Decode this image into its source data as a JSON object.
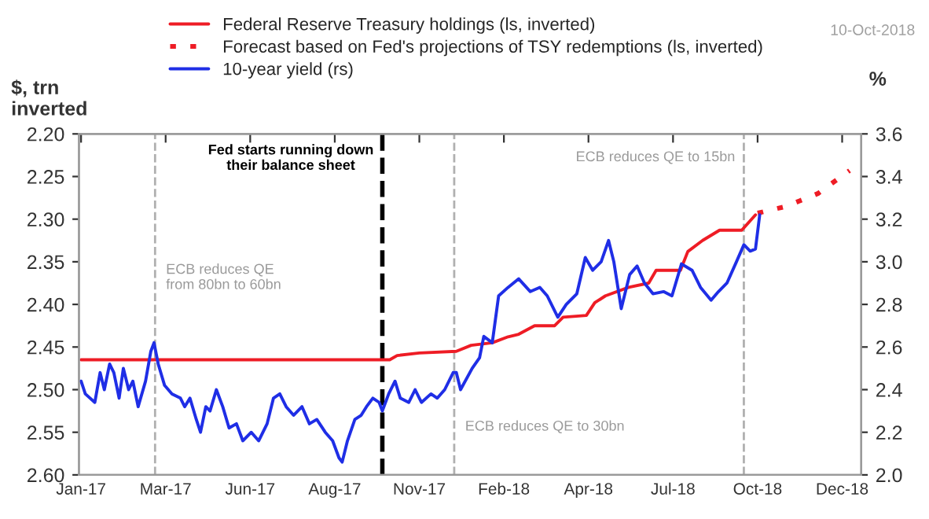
{
  "chart_data": {
    "type": "line",
    "ylabel": "$, trn\ninverted",
    "y2label": "%",
    "xlim": [
      "2016-12-30",
      "2019-01-09"
    ],
    "xticks": [
      {
        "value": "2017-01-01",
        "label": "Jan-17"
      },
      {
        "value": "2017-03-22",
        "label": "Mar-17"
      },
      {
        "value": "2017-06-10",
        "label": "Jun-17"
      },
      {
        "value": "2017-08-29",
        "label": "Aug-17"
      },
      {
        "value": "2017-11-17",
        "label": "Nov-17"
      },
      {
        "value": "2018-02-05",
        "label": "Feb-18"
      },
      {
        "value": "2018-04-26",
        "label": "Apr-18"
      },
      {
        "value": "2018-07-15",
        "label": "Jul-18"
      },
      {
        "value": "2018-10-03",
        "label": "Oct-18"
      },
      {
        "value": "2018-12-22",
        "label": "Dec-18"
      }
    ],
    "ylim": [
      2.6,
      2.2
    ],
    "yticks": [
      {
        "value": 2.2,
        "label": "2.20"
      },
      {
        "value": 2.25,
        "label": "2.25"
      },
      {
        "value": 2.3,
        "label": "2.30"
      },
      {
        "value": 2.35,
        "label": "2.35"
      },
      {
        "value": 2.4,
        "label": "2.40"
      },
      {
        "value": 2.45,
        "label": "2.45"
      },
      {
        "value": 2.5,
        "label": "2.50"
      },
      {
        "value": 2.55,
        "label": "2.55"
      },
      {
        "value": 2.6,
        "label": "2.60"
      }
    ],
    "y2lim": [
      2.0,
      3.6
    ],
    "y2ticks": [
      {
        "value": 2.0,
        "label": "2.0"
      },
      {
        "value": 2.2,
        "label": "2.2"
      },
      {
        "value": 2.4,
        "label": "2.4"
      },
      {
        "value": 2.6,
        "label": "2.6"
      },
      {
        "value": 2.8,
        "label": "2.8"
      },
      {
        "value": 3.0,
        "label": "3.0"
      },
      {
        "value": 3.2,
        "label": "3.2"
      },
      {
        "value": 3.4,
        "label": "3.4"
      },
      {
        "value": 3.6,
        "label": "3.6"
      }
    ],
    "grid": false,
    "legend": "top",
    "marker": "none",
    "series": [
      {
        "name": "Federal Reserve Treasury holdings (ls, inverted)",
        "color": "#ee1c25",
        "line_style": "solid",
        "x": [
          "2017-01-01",
          "2017-10-20",
          "2017-10-27",
          "2017-11-17",
          "2017-12-22",
          "2018-01-05",
          "2018-01-25",
          "2018-02-09",
          "2018-02-19",
          "2018-03-06",
          "2018-03-25",
          "2018-04-02",
          "2018-04-24",
          "2018-05-02",
          "2018-05-12",
          "2018-06-03",
          "2018-06-22",
          "2018-06-29",
          "2018-07-22",
          "2018-07-29",
          "2018-08-12",
          "2018-08-28",
          "2018-09-18",
          "2018-10-01"
        ],
        "values": [
          2.465,
          2.465,
          2.46,
          2.457,
          2.455,
          2.448,
          2.445,
          2.438,
          2.435,
          2.425,
          2.425,
          2.415,
          2.413,
          2.398,
          2.39,
          2.38,
          2.375,
          2.36,
          2.36,
          2.338,
          2.325,
          2.313,
          2.313,
          2.295
        ]
      },
      {
        "name": "Forecast based on Fed's projections of TSY redemptions (ls, inverted)",
        "color": "#ee1c25",
        "line_style": "dotted",
        "x": [
          "2018-10-03",
          "2018-10-30",
          "2018-11-29",
          "2018-12-29"
        ],
        "values": [
          2.293,
          2.285,
          2.27,
          2.243
        ]
      },
      {
        "name": "10-year yield (rs)",
        "color": "#1f2ee6",
        "line_style": "solid",
        "axis": "y2",
        "x": [
          "2017-01-01",
          "2017-01-05",
          "2017-01-14",
          "2017-01-19",
          "2017-01-23",
          "2017-01-28",
          "2017-02-01",
          "2017-02-06",
          "2017-02-10",
          "2017-02-15",
          "2017-02-19",
          "2017-02-24",
          "2017-03-03",
          "2017-03-08",
          "2017-03-11",
          "2017-03-15",
          "2017-03-21",
          "2017-03-28",
          "2017-04-05",
          "2017-04-09",
          "2017-04-14",
          "2017-04-20",
          "2017-04-24",
          "2017-04-29",
          "2017-05-03",
          "2017-05-09",
          "2017-05-15",
          "2017-05-21",
          "2017-05-28",
          "2017-06-03",
          "2017-06-11",
          "2017-06-18",
          "2017-06-26",
          "2017-07-02",
          "2017-07-08",
          "2017-07-14",
          "2017-07-21",
          "2017-07-29",
          "2017-08-05",
          "2017-08-12",
          "2017-08-20",
          "2017-08-27",
          "2017-09-02",
          "2017-09-05",
          "2017-09-10",
          "2017-09-17",
          "2017-09-23",
          "2017-09-28",
          "2017-10-04",
          "2017-10-10",
          "2017-10-13",
          "2017-10-19",
          "2017-10-25",
          "2017-10-30",
          "2017-11-07",
          "2017-11-13",
          "2017-11-19",
          "2017-11-28",
          "2017-12-04",
          "2017-12-11",
          "2017-12-19",
          "2017-12-22",
          "2017-12-26",
          "2018-01-06",
          "2018-01-13",
          "2018-01-17",
          "2018-01-25",
          "2018-01-31",
          "2018-02-09",
          "2018-02-19",
          "2018-03-02",
          "2018-03-11",
          "2018-03-18",
          "2018-03-28",
          "2018-04-05",
          "2018-04-15",
          "2018-04-23",
          "2018-04-30",
          "2018-05-08",
          "2018-05-15",
          "2018-05-20",
          "2018-05-27",
          "2018-06-04",
          "2018-06-11",
          "2018-06-18",
          "2018-06-26",
          "2018-07-06",
          "2018-07-14",
          "2018-07-23",
          "2018-08-02",
          "2018-08-10",
          "2018-08-20",
          "2018-08-27",
          "2018-09-04",
          "2018-09-13",
          "2018-09-20",
          "2018-09-26",
          "2018-10-01",
          "2018-10-05"
        ],
        "values": [
          2.44,
          2.38,
          2.34,
          2.48,
          2.4,
          2.52,
          2.48,
          2.36,
          2.5,
          2.4,
          2.44,
          2.32,
          2.44,
          2.58,
          2.62,
          2.52,
          2.42,
          2.38,
          2.36,
          2.32,
          2.36,
          2.26,
          2.2,
          2.32,
          2.3,
          2.4,
          2.32,
          2.22,
          2.24,
          2.16,
          2.2,
          2.16,
          2.24,
          2.36,
          2.38,
          2.32,
          2.28,
          2.32,
          2.24,
          2.26,
          2.2,
          2.16,
          2.08,
          2.06,
          2.16,
          2.26,
          2.28,
          2.32,
          2.36,
          2.34,
          2.3,
          2.38,
          2.44,
          2.36,
          2.34,
          2.4,
          2.34,
          2.38,
          2.36,
          2.4,
          2.48,
          2.48,
          2.4,
          2.5,
          2.55,
          2.65,
          2.62,
          2.84,
          2.88,
          2.92,
          2.86,
          2.88,
          2.84,
          2.74,
          2.8,
          2.85,
          3.02,
          2.96,
          3.0,
          3.1,
          3.0,
          2.78,
          2.94,
          2.98,
          2.9,
          2.85,
          2.86,
          2.84,
          2.99,
          2.96,
          2.88,
          2.82,
          2.86,
          2.9,
          3.0,
          3.08,
          3.05,
          3.06,
          3.22
        ]
      }
    ],
    "ref_lines": [
      {
        "axis": "x",
        "value": "2017-03-12",
        "color": "#b0b0b0",
        "line_style": "dashed",
        "label": "ECB reduces QE\nfrom 80bn to 60bn"
      },
      {
        "axis": "x",
        "value": "2017-10-13",
        "color": "#000000",
        "line_style": "dashed",
        "label": "Fed starts running down\ntheir balance sheet"
      },
      {
        "axis": "x",
        "value": "2017-12-20",
        "color": "#b0b0b0",
        "line_style": "dashed",
        "label": "ECB reduces QE to 30bn"
      },
      {
        "axis": "x",
        "value": "2018-09-20",
        "color": "#b0b0b0",
        "line_style": "dashed",
        "label": "ECB reduces QE to 15bn"
      }
    ],
    "annotations": [
      "10-Oct-2018"
    ]
  }
}
